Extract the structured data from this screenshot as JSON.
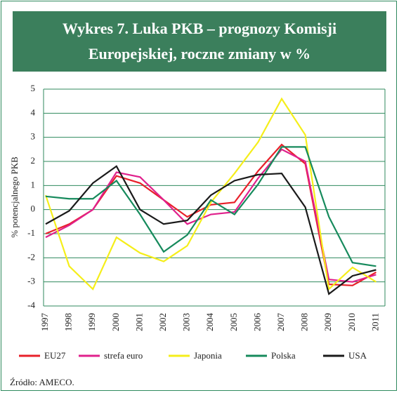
{
  "chart_data": {
    "type": "line",
    "title": "Wykres  7. Luka PKB – prognozy Komisji Europejskiej, roczne zmiany w %",
    "y_label": "% potencjalnego PKB",
    "source": "Źródło: AMECO.",
    "categories": [
      "1997",
      "1998",
      "1999",
      "2000",
      "2001",
      "2002",
      "2003",
      "2004",
      "2005",
      "2006",
      "2007",
      "2008",
      "2009",
      "2010",
      "2011"
    ],
    "series": [
      {
        "name": "EU27",
        "color": "#e8202a",
        "values": [
          -1.0,
          -0.6,
          0.0,
          1.4,
          1.1,
          0.4,
          -0.3,
          0.2,
          0.3,
          1.6,
          2.7,
          1.9,
          -3.1,
          -3.15,
          -2.6
        ]
      },
      {
        "name": "strefa euro",
        "color": "#e0208c",
        "values": [
          -1.15,
          -0.65,
          0.0,
          1.55,
          1.35,
          0.4,
          -0.6,
          -0.2,
          -0.1,
          1.3,
          2.5,
          2.0,
          -2.9,
          -3.0,
          -2.7
        ]
      },
      {
        "name": "Japonia",
        "color": "#f5ee1a",
        "values": [
          0.6,
          -2.35,
          -3.3,
          -1.15,
          -1.8,
          -2.15,
          -1.5,
          0.3,
          1.5,
          2.8,
          4.6,
          3.1,
          -3.3,
          -2.4,
          -3.0
        ]
      },
      {
        "name": "Polska",
        "color": "#168a5c",
        "values": [
          0.55,
          0.45,
          0.45,
          1.2,
          -0.2,
          -1.75,
          -1.05,
          0.4,
          -0.2,
          1.05,
          2.6,
          2.6,
          -0.3,
          -2.2,
          -2.35
        ]
      },
      {
        "name": "USA",
        "color": "#1a1a1a",
        "values": [
          -0.6,
          -0.05,
          1.1,
          1.8,
          0.0,
          -0.6,
          -0.45,
          0.6,
          1.2,
          1.45,
          1.5,
          0.1,
          -3.5,
          -2.75,
          -2.5
        ]
      }
    ],
    "ylim": [
      -4,
      5
    ],
    "yticks": [
      -4,
      -3,
      -2,
      -1,
      0,
      1,
      2,
      3,
      4,
      5
    ],
    "grid": true
  }
}
